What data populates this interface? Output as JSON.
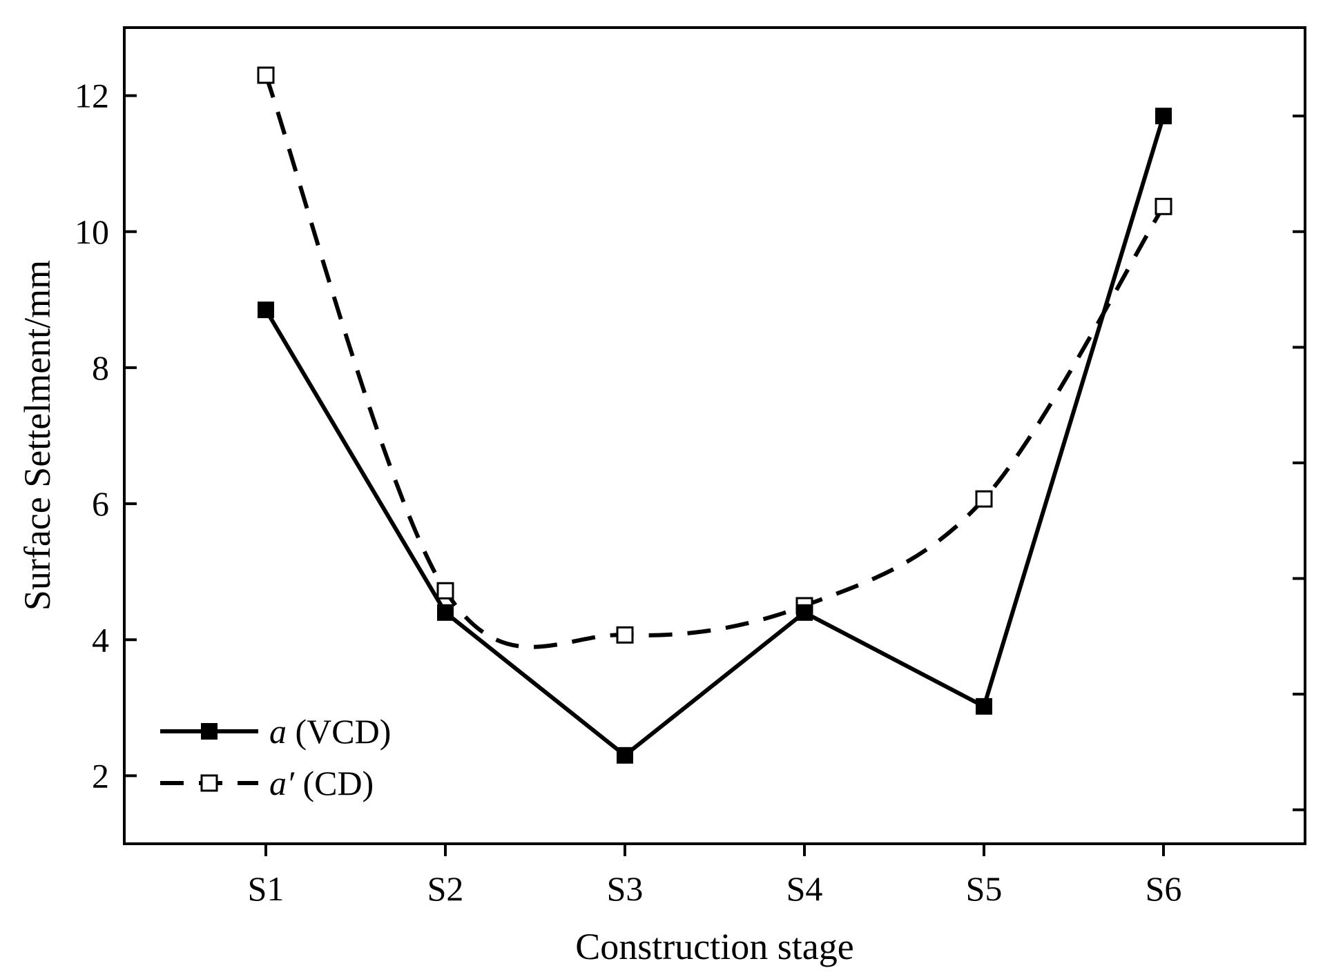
{
  "chart_data": {
    "type": "line",
    "title": "",
    "xlabel": "Construction stage",
    "ylabel": "Surface Settelment/mm",
    "categories": [
      "S1",
      "S2",
      "S3",
      "S4",
      "S5",
      "S6"
    ],
    "ylim": [
      1.0,
      13.0
    ],
    "yticks": [
      2,
      4,
      6,
      8,
      10,
      12
    ],
    "grid": false,
    "legend_position": "bottom-left",
    "series": [
      {
        "name": "a (VCD)",
        "legend_var": "a",
        "legend_suffix": " (VCD)",
        "values": [
          8.85,
          4.4,
          2.3,
          4.4,
          3.02,
          11.7
        ],
        "line_style": "solid",
        "marker": "filled-square",
        "color": "#000000"
      },
      {
        "name": "a′ (CD)",
        "legend_var": "a′",
        "legend_suffix": " (CD)",
        "values": [
          12.3,
          4.72,
          4.07,
          4.5,
          6.07,
          10.37
        ],
        "line_style": "dashed",
        "marker": "open-square",
        "color": "#000000"
      }
    ]
  }
}
